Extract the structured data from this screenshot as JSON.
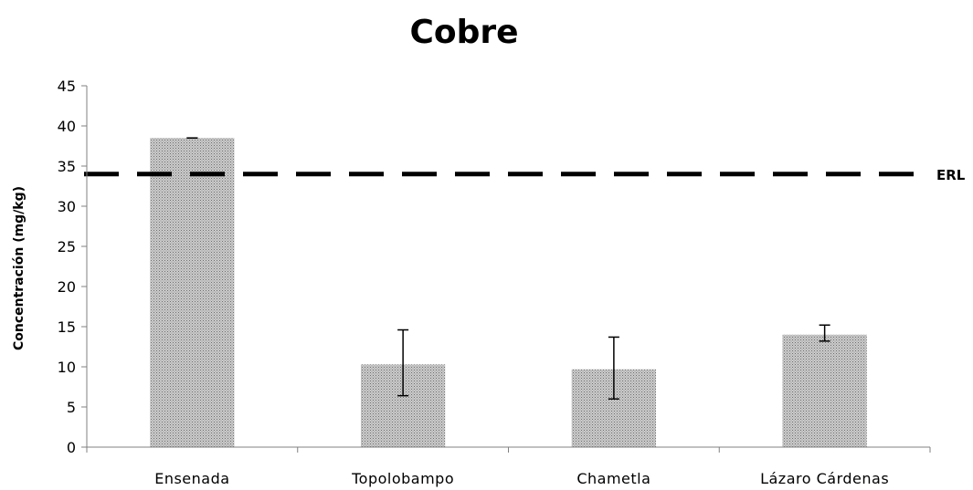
{
  "chart_data": {
    "type": "bar",
    "title": "Cobre",
    "ylabel": "Concentración (mg/kg)",
    "xlabel": "",
    "ylim": [
      0,
      45
    ],
    "yticks": [
      0,
      5,
      10,
      15,
      20,
      25,
      30,
      35,
      40,
      45
    ],
    "categories": [
      "Ensenada",
      "Topolobampo",
      "Chametla",
      "Lázaro Cárdenas"
    ],
    "values": [
      38.5,
      10.3,
      9.7,
      14.0
    ],
    "error_low": [
      38.5,
      6.4,
      6.0,
      13.2
    ],
    "error_high": [
      38.5,
      14.6,
      13.7,
      15.2
    ],
    "reference_line": {
      "label": "ERL",
      "value": 34,
      "style": "dashed"
    },
    "bar_fill": "stippled gray",
    "grid": false,
    "colors": {
      "bar_fill": "#c4c4c4",
      "bar_dots": "#6e6e6e",
      "axis": "#808080",
      "ref_line": "#000000"
    }
  }
}
